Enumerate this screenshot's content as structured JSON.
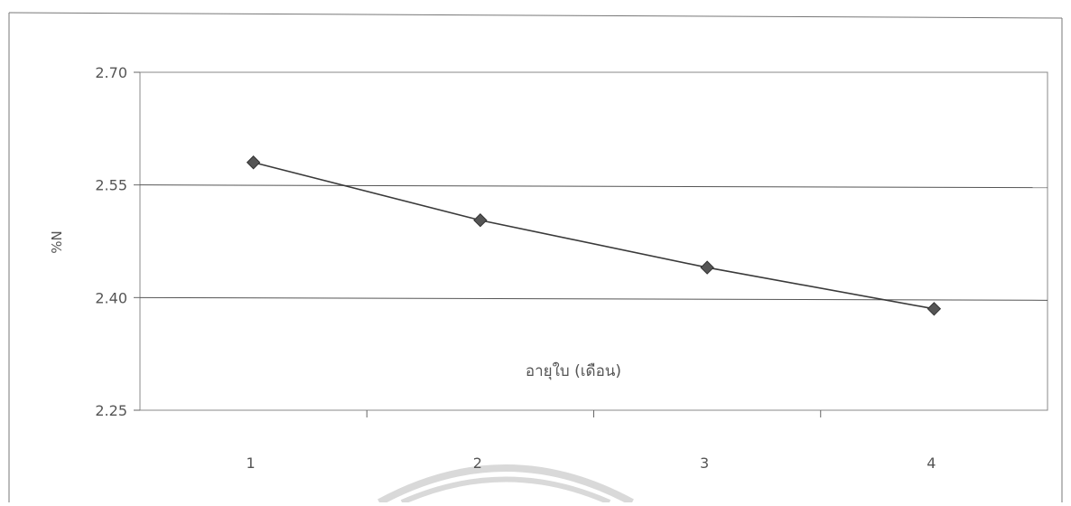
{
  "chart_data": {
    "type": "line",
    "x": [
      1,
      2,
      3,
      4
    ],
    "categories": [
      "1",
      "2",
      "3",
      "4"
    ],
    "series": [
      {
        "values": [
          2.58,
          2.503,
          2.44,
          2.385
        ]
      }
    ],
    "title": "",
    "xlabel": "อายุใบ (เดือน)",
    "ylabel": "%N",
    "ylim": [
      2.25,
      2.7
    ],
    "yticks": [
      "2.25",
      "2.40",
      "2.55",
      "2.70"
    ],
    "grid": true,
    "legend": "none",
    "colors": {
      "line": "#3a3a3a",
      "marker": "#555555",
      "grid": "#555555",
      "axis": "#666666",
      "text": "#555555",
      "watermark": "#d9d9d9"
    }
  }
}
